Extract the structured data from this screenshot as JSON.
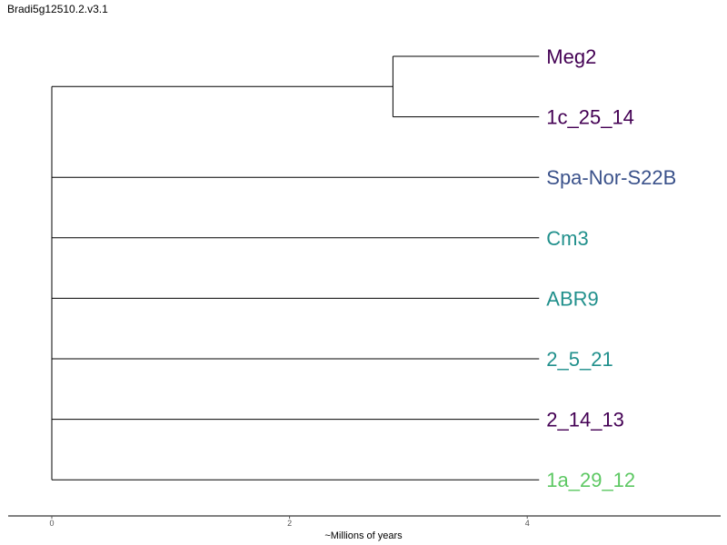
{
  "title": "Bradi5g12510.2.v3.1",
  "x_axis": {
    "label": "~Millions of years",
    "ticks": [
      "0",
      "2",
      "4"
    ],
    "range": [
      0,
      4
    ]
  },
  "tree": {
    "tips": [
      {
        "name": "Meg2",
        "color": "#440154",
        "x": 4.1
      },
      {
        "name": "1c_25_14",
        "color": "#440154",
        "x": 4.1
      },
      {
        "name": "Spa-Nor-S22B",
        "color": "#3b528b",
        "x": 4.1
      },
      {
        "name": "Cm3",
        "color": "#21908c",
        "x": 4.1
      },
      {
        "name": "ABR9",
        "color": "#21908c",
        "x": 4.1
      },
      {
        "name": "2_5_21",
        "color": "#21908c",
        "x": 4.1
      },
      {
        "name": "2_14_13",
        "color": "#440154",
        "x": 4.1
      },
      {
        "name": "1a_29_12",
        "color": "#5dc863",
        "x": 4.1
      }
    ],
    "clades": [
      {
        "members": [
          "Meg2",
          "1c_25_14"
        ],
        "node_x": 2.87
      }
    ],
    "root_x": 0
  }
}
